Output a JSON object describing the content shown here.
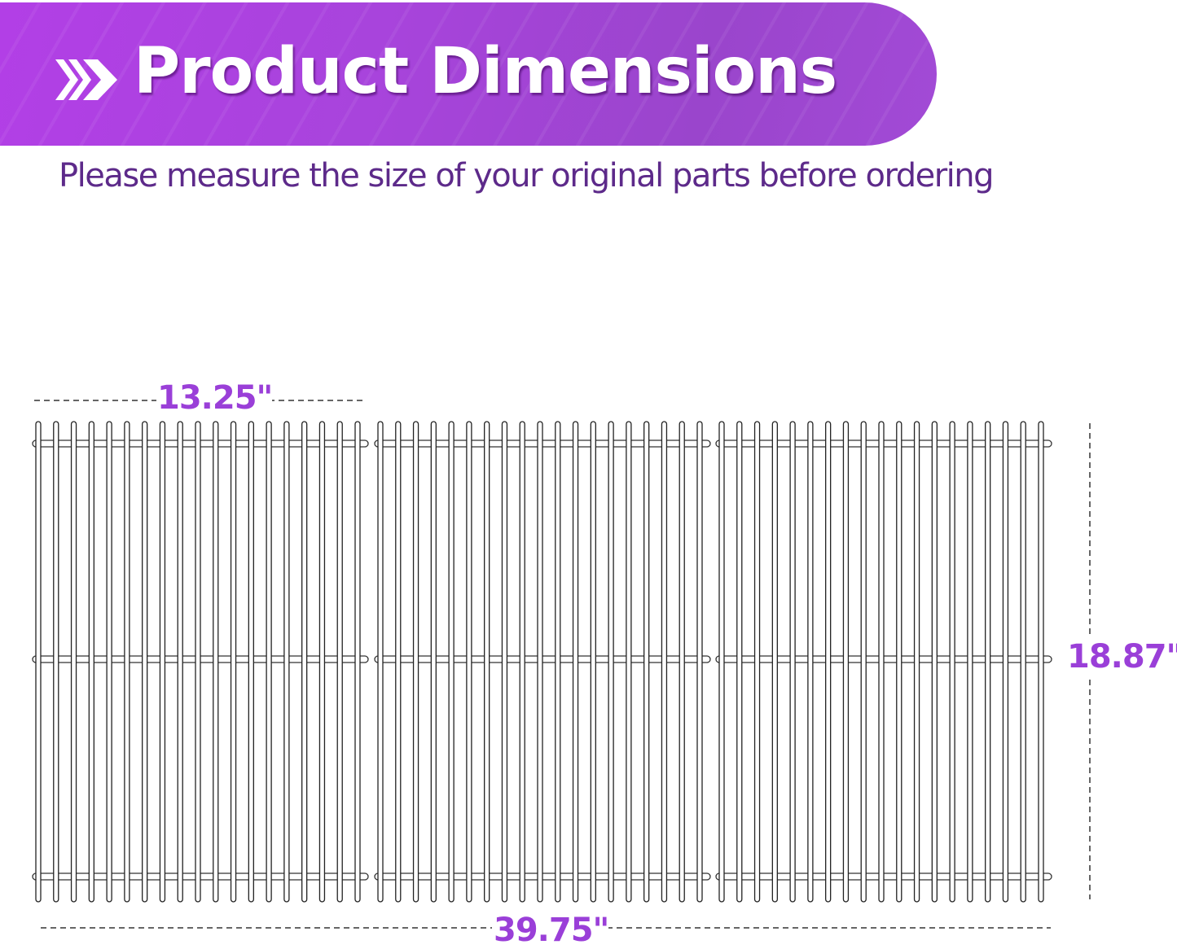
{
  "header": {
    "title": "Product Dimensions",
    "chevron_icon": "double-chevron-right-icon",
    "color": "#a844dc"
  },
  "subtitle": "Please measure the size of your original parts before ordering",
  "dimensions": {
    "single_width": "13.25\"",
    "depth": "18.87\"",
    "total_width": "39.75\"",
    "color": "#9a3fd8"
  },
  "grates": {
    "count": 3,
    "bars_per_grate": 19,
    "crossbars": 3
  }
}
